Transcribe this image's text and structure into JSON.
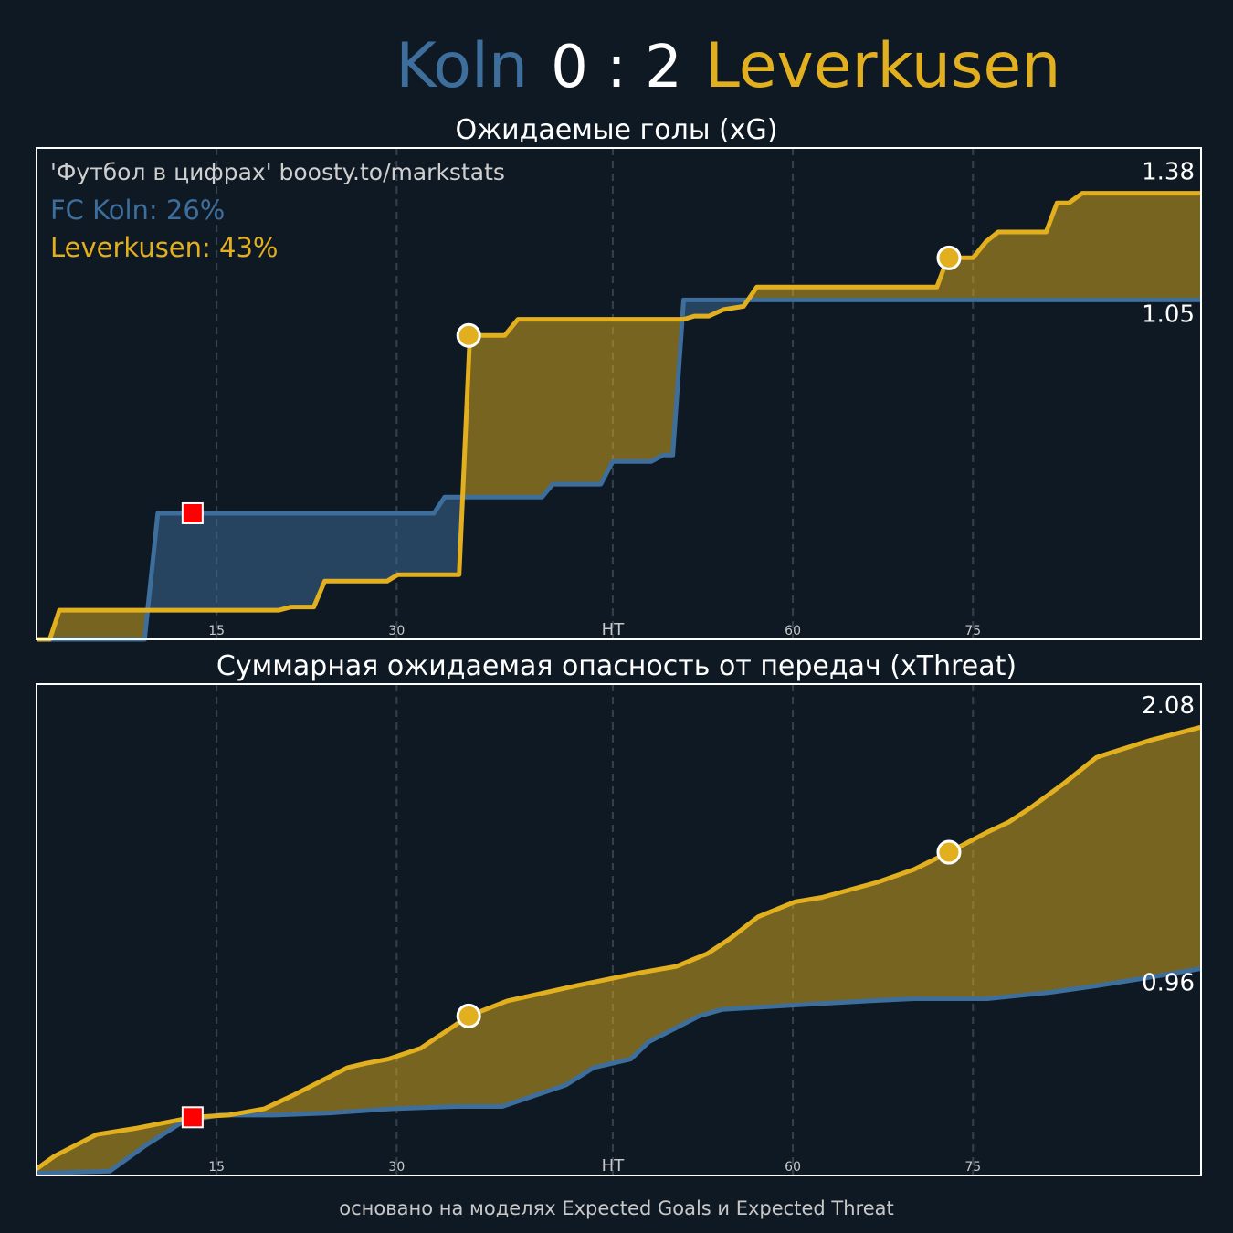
{
  "header": {
    "home": "Koln",
    "score": "0 : 2",
    "away": "Leverkusen",
    "home_color": "#3d6e9c",
    "away_color": "#e2b01f"
  },
  "footer": "основано на моделях Expected Goals и Expected Threat",
  "chart_data": [
    {
      "type": "line",
      "title": "Ожидаемые голы (xG)",
      "xlim": [
        0,
        97
      ],
      "xticks": [
        15,
        30,
        {
          "value": 48,
          "label": "HT"
        },
        {
          "value": 63,
          "label": "60"
        },
        {
          "value": 78,
          "label": "75"
        }
      ],
      "ylim": [
        0,
        1.52
      ],
      "grid": true,
      "annotations": [
        {
          "text": "'Футбол в цифрах' boosty.to/markstats",
          "color": "#cfcfcf"
        },
        {
          "text": "FC Koln: 26%",
          "color": "#3d6e9c"
        },
        {
          "text": "Leverkusen: 43%",
          "color": "#e2b01f"
        }
      ],
      "series": [
        {
          "name": "Koln",
          "color": "#3d6e9c",
          "x": [
            0,
            9.0,
            10.1,
            33.1,
            34.0,
            42.1,
            43.0,
            47.0,
            48.0,
            51.2,
            52.2,
            53.0,
            53.9,
            97
          ],
          "values": [
            0,
            0,
            0.39,
            0.39,
            0.44,
            0.44,
            0.48,
            0.48,
            0.55,
            0.55,
            0.57,
            0.57,
            1.05,
            1.05
          ]
        },
        {
          "name": "Leverkusen",
          "color": "#e2b01f",
          "x": [
            0,
            1.1,
            1.9,
            20.2,
            21.2,
            23.1,
            24.0,
            29.2,
            30.1,
            35.2,
            36.1,
            39.0,
            40.1,
            53.9,
            54.8,
            56.0,
            57.2,
            58.9,
            60.0,
            75.0,
            75.9,
            78.0,
            79.1,
            80.1,
            84.1,
            85.0,
            86.0,
            87.1,
            97
          ],
          "values": [
            0,
            0,
            0.09,
            0.09,
            0.1,
            0.1,
            0.18,
            0.18,
            0.2,
            0.2,
            0.94,
            0.94,
            0.99,
            0.99,
            1.0,
            1.0,
            1.02,
            1.03,
            1.09,
            1.09,
            1.18,
            1.18,
            1.23,
            1.26,
            1.26,
            1.35,
            1.35,
            1.38,
            1.38
          ]
        }
      ],
      "markers": [
        {
          "x": 13.0,
          "y": 0.39,
          "shape": "square",
          "color": "#ff0000"
        },
        {
          "x": 36.0,
          "y": 0.94,
          "shape": "circle",
          "color": "#e2b01f"
        },
        {
          "x": 76.0,
          "y": 1.18,
          "shape": "circle",
          "color": "#e2b01f"
        }
      ]
    },
    {
      "type": "line",
      "title": "Суммарная ожидаемая опасность от передач (xThreat)",
      "xlim": [
        0,
        97
      ],
      "xticks": [
        15,
        30,
        {
          "value": 48,
          "label": "HT"
        },
        {
          "value": 63,
          "label": "60"
        },
        {
          "value": 78,
          "label": "75"
        }
      ],
      "ylim": [
        0,
        2.28
      ],
      "grid": true,
      "series": [
        {
          "name": "Koln",
          "color": "#3d6e9c",
          "x": [
            0,
            6.1,
            9.1,
            12.2,
            15.2,
            19.8,
            24.4,
            29.7,
            35.0,
            38.8,
            44.1,
            46.4,
            49.5,
            51.0,
            55.2,
            57.1,
            63.0,
            69.3,
            73.1,
            79.2,
            84.5,
            88.3,
            92.8,
            97
          ],
          "values": [
            0.01,
            0.02,
            0.14,
            0.25,
            0.28,
            0.28,
            0.29,
            0.31,
            0.32,
            0.32,
            0.42,
            0.5,
            0.54,
            0.62,
            0.74,
            0.77,
            0.79,
            0.81,
            0.82,
            0.82,
            0.85,
            0.88,
            0.92,
            0.96
          ]
        },
        {
          "name": "Leverkusen",
          "color": "#e2b01f",
          "x": [
            0,
            1.5,
            5.0,
            8.4,
            13.0,
            16.0,
            19.0,
            21.3,
            25.9,
            27.4,
            29.3,
            32.0,
            36.0,
            39.2,
            44.9,
            50.2,
            53.3,
            55.9,
            57.8,
            60.1,
            63.2,
            65.4,
            70.0,
            73.1,
            76.0,
            79.1,
            81.0,
            82.9,
            85.6,
            88.3,
            89.4,
            92.8,
            97
          ],
          "values": [
            0.03,
            0.09,
            0.19,
            0.22,
            0.27,
            0.28,
            0.31,
            0.37,
            0.5,
            0.52,
            0.54,
            0.59,
            0.74,
            0.81,
            0.88,
            0.94,
            0.97,
            1.03,
            1.1,
            1.2,
            1.27,
            1.29,
            1.36,
            1.42,
            1.5,
            1.59,
            1.64,
            1.71,
            1.82,
            1.94,
            1.96,
            2.02,
            2.08
          ]
        }
      ],
      "markers": [
        {
          "x": 13.0,
          "y": 0.27,
          "shape": "square",
          "color": "#ff0000"
        },
        {
          "x": 36.0,
          "y": 0.74,
          "shape": "circle",
          "color": "#e2b01f"
        },
        {
          "x": 76.0,
          "y": 1.5,
          "shape": "circle",
          "color": "#e2b01f"
        }
      ]
    }
  ]
}
